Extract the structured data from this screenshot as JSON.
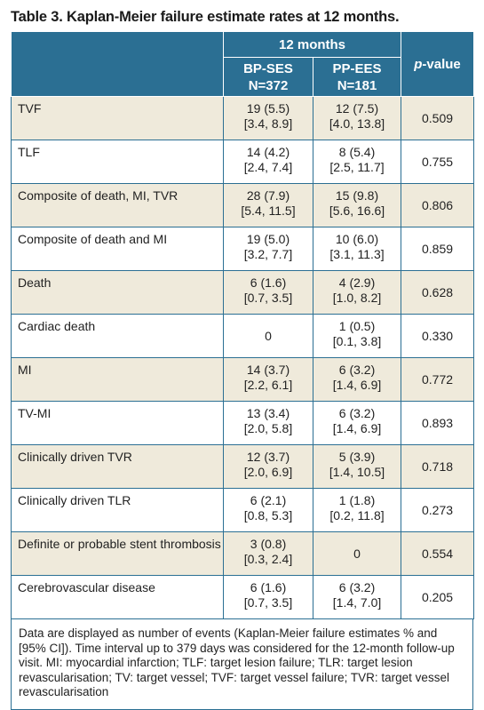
{
  "title": "Table 3. Kaplan-Meier failure estimate rates at 12 months.",
  "header": {
    "group": "12 months",
    "col1_line1": "BP-SES",
    "col1_line2": "N=372",
    "col2_line1": "PP-EES",
    "col2_line2": "N=181",
    "pvalue_italic": "p",
    "pvalue_rest": "-value"
  },
  "rows": [
    {
      "label": "TVF",
      "bp_line1": "19 (5.5)",
      "bp_line2": "[3.4, 8.9]",
      "pp_line1": "12 (7.5)",
      "pp_line2": "[4.0, 13.8]",
      "p": "0.509"
    },
    {
      "label": "TLF",
      "bp_line1": "14 (4.2)",
      "bp_line2": "[2.4, 7.4]",
      "pp_line1": "8 (5.4)",
      "pp_line2": "[2.5, 11.7]",
      "p": "0.755"
    },
    {
      "label": "Composite of death, MI, TVR",
      "bp_line1": "28 (7.9)",
      "bp_line2": "[5.4, 11.5]",
      "pp_line1": "15 (9.8)",
      "pp_line2": "[5.6, 16.6]",
      "p": "0.806"
    },
    {
      "label": "Composite of death and MI",
      "bp_line1": "19 (5.0)",
      "bp_line2": "[3.2, 7.7]",
      "pp_line1": "10 (6.0)",
      "pp_line2": "[3.1, 11.3]",
      "p": "0.859"
    },
    {
      "label": "Death",
      "bp_line1": "6 (1.6)",
      "bp_line2": "[0.7, 3.5]",
      "pp_line1": "4 (2.9)",
      "pp_line2": "[1.0, 8.2]",
      "p": "0.628"
    },
    {
      "label": "Cardiac death",
      "bp_single": "0",
      "pp_line1": "1 (0.5)",
      "pp_line2": "[0.1, 3.8]",
      "p": "0.330"
    },
    {
      "label": "MI",
      "bp_line1": "14 (3.7)",
      "bp_line2": "[2.2, 6.1]",
      "pp_line1": "6 (3.2)",
      "pp_line2": "[1.4, 6.9]",
      "p": "0.772"
    },
    {
      "label": "TV-MI",
      "bp_line1": "13 (3.4)",
      "bp_line2": "[2.0, 5.8]",
      "pp_line1": "6 (3.2)",
      "pp_line2": "[1.4, 6.9]",
      "p": "0.893"
    },
    {
      "label": "Clinically driven TVR",
      "bp_line1": "12 (3.7)",
      "bp_line2": "[2.0, 6.9]",
      "pp_line1": "5 (3.9)",
      "pp_line2": "[1.4, 10.5]",
      "p": "0.718"
    },
    {
      "label": "Clinically driven TLR",
      "bp_line1": "6 (2.1)",
      "bp_line2": "[0.8, 5.3]",
      "pp_line1": "1 (1.8)",
      "pp_line2": "[0.2, 11.8]",
      "p": "0.273"
    },
    {
      "label": "Definite or probable stent thrombosis",
      "bp_line1": "3 (0.8)",
      "bp_line2": "[0.3, 2.4]",
      "pp_single": "0",
      "p": "0.554"
    },
    {
      "label": "Cerebrovascular disease",
      "bp_line1": "6 (1.6)",
      "bp_line2": "[0.7, 3.5]",
      "pp_line1": "6 (3.2)",
      "pp_line2": "[1.4, 7.0]",
      "p": "0.205"
    }
  ],
  "footnote": "Data are displayed as number of events (Kaplan-Meier failure estimates % and [95% CI]). Time interval up to 379 days was considered for the 12-month follow-up visit. MI: myocardial infarction; TLF: target lesion failure; TLR: target lesion revascularisation; TV: target vessel; TVF: target vessel failure; TVR: target vessel revascularisation",
  "colors": {
    "header_bg": "#2b6f93",
    "shaded_row_bg": "#efeadb",
    "border": "#2b6f93"
  }
}
